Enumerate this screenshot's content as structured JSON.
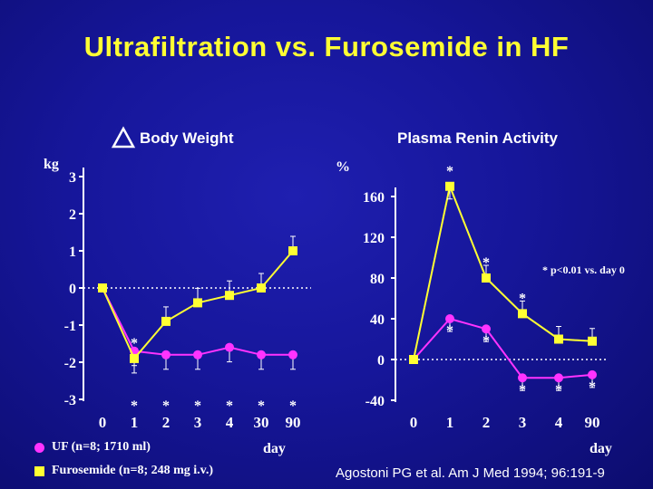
{
  "title": "Ultrafiltration vs. Furosemide in HF",
  "colors": {
    "background": "#16169a",
    "title": "#ffff33",
    "uf": "#ff33ff",
    "furosemide": "#ffff33",
    "axis": "#ffffff"
  },
  "icons": {
    "delta": "triangle-outline-icon"
  },
  "legend": {
    "uf": {
      "marker": "circle",
      "label": "UF (n=8; 1710 ml)"
    },
    "furosemide": {
      "marker": "square",
      "label": "Furosemide (n=8; 248 mg i.v.)"
    }
  },
  "note": "* p<0.01 vs. day 0",
  "citation": "Agostoni PG et al. Am J Med 1994; 96:191-9",
  "chart_data": [
    {
      "type": "line",
      "title": "Body Weight",
      "ylabel": "kg",
      "xlabel": "day",
      "categories": [
        "0",
        "1",
        "2",
        "3",
        "4",
        "30",
        "90"
      ],
      "yticks": [
        "3",
        "2",
        "1",
        "0",
        "-1",
        "-2",
        "-3"
      ],
      "ylim": [
        -3,
        3
      ],
      "series": [
        {
          "name": "UF",
          "marker": "circle",
          "values": [
            0,
            -1.7,
            -1.8,
            -1.8,
            -1.6,
            -1.8,
            -1.8
          ],
          "stars": [
            "",
            "*",
            "*",
            "*",
            "*",
            "*",
            "*"
          ]
        },
        {
          "name": "Furosemide",
          "marker": "square",
          "values": [
            0,
            -1.9,
            -0.9,
            -0.4,
            -0.2,
            0,
            1
          ],
          "stars": [
            "",
            "*",
            "",
            "",
            "",
            "",
            ""
          ]
        }
      ]
    },
    {
      "type": "line",
      "title": "Plasma Renin Activity",
      "ylabel": "%",
      "xlabel": "day",
      "categories": [
        "0",
        "1",
        "2",
        "3",
        "4",
        "90"
      ],
      "yticks": [
        "160",
        "120",
        "80",
        "40",
        "0",
        "-40"
      ],
      "ylim": [
        -40,
        160
      ],
      "series": [
        {
          "name": "UF",
          "marker": "circle",
          "values": [
            0,
            40,
            30,
            -18,
            -18,
            -15
          ],
          "stars": [
            "",
            "*",
            "*",
            "*",
            "*",
            "*"
          ]
        },
        {
          "name": "Furosemide",
          "marker": "square",
          "values": [
            0,
            170,
            80,
            45,
            20,
            18
          ],
          "stars": [
            "",
            "*",
            "*",
            "*",
            "",
            ""
          ]
        }
      ]
    }
  ]
}
